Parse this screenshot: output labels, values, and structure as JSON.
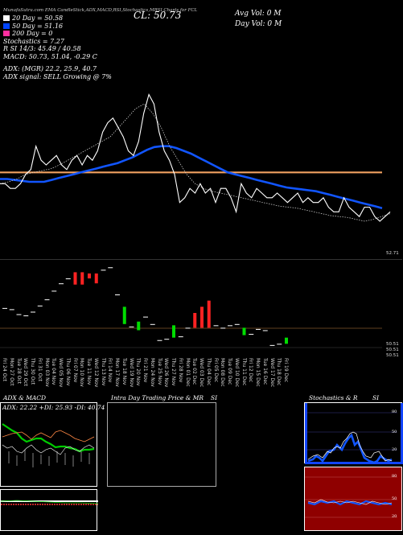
{
  "header": {
    "top_line": "MunafaSutra.com EMA CandleStick,ADX,MACD,RSI,Stochastics,MRSI Charts for FCL",
    "close_label": "CL: 50.73",
    "avg_vol": "Avg Vol: 0   M",
    "day_vol": "Day Vol: 0   M",
    "legend": [
      {
        "label": "20  Day = 50.58",
        "color": "#ffffff"
      },
      {
        "label": "50  Day = 51.16",
        "color": "#0044ff"
      },
      {
        "label": "200  Day = 0",
        "color": "#ff2fa0"
      }
    ],
    "stoch": "Stochastics = 7.27",
    "rsi": "R          SI 14/3: 45.49 / 40.58",
    "macd": "MACD: 50.73, 51.04, -0.29 C",
    "adx": "ADX:                    (MGR) 22.2, 25.9, 40.7",
    "adx_signal": "ADX  signal: SELL Growing @ 7%"
  },
  "price_chart": {
    "price_label": "52.71",
    "series_white": [
      51.6,
      51.6,
      51.55,
      51.55,
      51.6,
      51.7,
      51.75,
      52.0,
      51.85,
      51.8,
      51.85,
      51.9,
      51.8,
      51.75,
      51.85,
      51.9,
      51.8,
      51.9,
      51.85,
      51.95,
      52.15,
      52.25,
      52.3,
      52.2,
      52.1,
      51.95,
      51.9,
      52.05,
      52.35,
      52.55,
      52.45,
      52.15,
      51.95,
      51.85,
      51.7,
      51.4,
      51.45,
      51.55,
      51.5,
      51.6,
      51.5,
      51.55,
      51.4,
      51.55,
      51.55,
      51.45,
      51.3,
      51.6,
      51.5,
      51.45,
      51.55,
      51.5,
      51.45,
      51.45,
      51.5,
      51.45,
      51.4,
      51.45,
      51.5,
      51.4,
      51.45,
      51.4,
      51.4,
      51.45,
      51.35,
      51.3,
      51.3,
      51.45,
      51.35,
      51.3,
      51.25,
      51.35,
      51.35,
      51.25,
      51.2,
      51.25,
      51.3
    ],
    "series_blue": [
      51.65,
      51.65,
      51.64,
      51.63,
      51.62,
      51.62,
      51.62,
      51.64,
      51.66,
      51.68,
      51.7,
      51.72,
      51.74,
      51.76,
      51.78,
      51.8,
      51.82,
      51.85,
      51.88,
      51.92,
      51.96,
      51.99,
      52.0,
      52.0,
      51.98,
      51.95,
      51.92,
      51.88,
      51.84,
      51.8,
      51.76,
      51.72,
      51.7,
      51.68,
      51.66,
      51.64,
      51.62,
      51.6,
      51.58,
      51.56,
      51.55,
      51.54,
      51.53,
      51.52,
      51.5,
      51.48,
      51.46,
      51.44,
      51.42,
      51.4,
      51.38,
      51.36,
      51.34
    ],
    "series_dotted": [
      51.6,
      51.62,
      51.65,
      51.7,
      51.72,
      51.74,
      51.76,
      51.8,
      51.85,
      51.9,
      51.95,
      52.0,
      52.05,
      52.1,
      52.2,
      52.3,
      52.4,
      52.45,
      52.35,
      52.2,
      52.0,
      51.85,
      51.7,
      51.6,
      51.55,
      51.52,
      51.5,
      51.48,
      51.46,
      51.44,
      51.42,
      51.4,
      51.38,
      51.36,
      51.35,
      51.34,
      51.32,
      51.3,
      51.28,
      51.26,
      51.25,
      51.24,
      51.22,
      51.2,
      51.22,
      51.25,
      51.28
    ],
    "orange_level": 51.72
  },
  "candle_chart": {
    "dates": [
      "Fri 24 Oct",
      "Mon 27 Oct",
      "Tue 28 Oct",
      "Wed 29 Oct",
      "Thu 30 Oct",
      "Fri 31 Oct",
      "Mon 03 Nov",
      "Tue 04 Nov",
      "Wed 05 Nov",
      "Thu 06 Nov",
      "Fri 07 Nov",
      "Mon 10 Nov",
      "Tue 11 Nov",
      "Wed 12 Nov",
      "Thu 13 Nov",
      "Fri 14 Nov",
      "Mon 17 Nov",
      "Tue 18 Nov",
      "Wed 19 Nov",
      "Thu 20 Nov",
      "Fri 21 Nov",
      "Mon 24 Nov",
      "Tue 25 Nov",
      "Wed 26 Nov",
      "Thu 27 Nov",
      "Fri 28 Nov",
      "Mon 01 Dec",
      "Tue 02 Dec",
      "Wed 03 Dec",
      "Thu 04 Dec",
      "Fri 05 Dec",
      "Mon 08 Dec",
      "Tue 09 Dec",
      "Wed 10 Dec",
      "Thu 11 Dec",
      "Fri 12 Dec",
      "Mon 15 Dec",
      "Tue 16 Dec",
      "Wed 17 Dec",
      "Thu 18 Dec",
      "Fri 19 Dec"
    ],
    "candles": [
      {
        "o": 51.58,
        "c": 51.58,
        "color": "#ffffff"
      },
      {
        "o": 51.56,
        "c": 51.56,
        "color": "#ffffff"
      },
      {
        "o": 51.48,
        "c": 51.48,
        "color": "#ffffff"
      },
      {
        "o": 51.46,
        "c": 51.46,
        "color": "#ffffff"
      },
      {
        "o": 51.52,
        "c": 51.52,
        "color": "#ffffff"
      },
      {
        "o": 51.62,
        "c": 51.62,
        "color": "#ffffff"
      },
      {
        "o": 51.72,
        "c": 51.72,
        "color": "#ffffff"
      },
      {
        "o": 51.86,
        "c": 51.86,
        "color": "#ffffff"
      },
      {
        "o": 51.98,
        "c": 51.98,
        "color": "#ffffff"
      },
      {
        "o": 52.06,
        "c": 52.06,
        "color": "#ffffff"
      },
      {
        "o": 51.96,
        "c": 52.16,
        "color": "#ff2222"
      },
      {
        "o": 51.96,
        "c": 52.16,
        "color": "#ff2222"
      },
      {
        "o": 52.06,
        "c": 52.14,
        "color": "#ff2222"
      },
      {
        "o": 51.98,
        "c": 52.14,
        "color": "#ff2222"
      },
      {
        "o": 52.2,
        "c": 52.2,
        "color": "#ffffff"
      },
      {
        "o": 52.24,
        "c": 52.24,
        "color": "#ffffff"
      },
      {
        "o": 51.8,
        "c": 51.8,
        "color": "#ffffff"
      },
      {
        "o": 51.6,
        "c": 51.32,
        "color": "#00dd00"
      },
      {
        "o": 51.28,
        "c": 51.28,
        "color": "#ffffff"
      },
      {
        "o": 51.36,
        "c": 51.22,
        "color": "#00dd00"
      },
      {
        "o": 51.44,
        "c": 51.44,
        "color": "#ffffff"
      },
      {
        "o": 51.32,
        "c": 51.32,
        "color": "#ffffff"
      },
      {
        "o": 51.06,
        "c": 51.06,
        "color": "#ffffff"
      },
      {
        "o": 51.08,
        "c": 51.08,
        "color": "#ffffff"
      },
      {
        "o": 51.3,
        "c": 51.1,
        "color": "#00dd00"
      },
      {
        "o": 51.12,
        "c": 51.12,
        "color": "#ffffff"
      },
      {
        "o": 51.26,
        "c": 51.26,
        "color": "#ffffff"
      },
      {
        "o": 51.26,
        "c": 51.5,
        "color": "#ff2222"
      },
      {
        "o": 51.26,
        "c": 51.6,
        "color": "#ff2222"
      },
      {
        "o": 51.26,
        "c": 51.7,
        "color": "#ff2222"
      },
      {
        "o": 51.3,
        "c": 51.3,
        "color": "#ffffff"
      },
      {
        "o": 51.26,
        "c": 51.26,
        "color": "#ffffff"
      },
      {
        "o": 51.3,
        "c": 51.3,
        "color": "#ffffff"
      },
      {
        "o": 51.32,
        "c": 51.32,
        "color": "#ffffff"
      },
      {
        "o": 51.26,
        "c": 51.14,
        "color": "#00dd00"
      },
      {
        "o": 51.16,
        "c": 51.16,
        "color": "#ffffff"
      },
      {
        "o": 51.24,
        "c": 51.24,
        "color": "#ffffff"
      },
      {
        "o": 51.22,
        "c": 51.22,
        "color": "#ffffff"
      },
      {
        "o": 50.98,
        "c": 50.98,
        "color": "#ffffff"
      },
      {
        "o": 51.0,
        "c": 51.0,
        "color": "#ffffff"
      },
      {
        "o": 51.1,
        "c": 51.0,
        "color": "#00dd00"
      }
    ],
    "price_labels": [
      "50.51",
      "50.51",
      "50.51"
    ]
  },
  "panels": {
    "adx_title": "ADX  & MACD",
    "adx_values": "ADX: 22.22  +DI: 25.93 -DI: 40.74",
    "intraday_title": "Intra  Day Trading Price  & MR",
    "si_label": "SI",
    "stoch_title": "Stochastics & R",
    "stoch_si_label": "SI",
    "stoch_axis": [
      "80",
      "50",
      "20"
    ],
    "mrsi_axis": [
      "80",
      "50",
      "20"
    ]
  },
  "colors": {
    "background": "#000000",
    "blue": "#1155ff",
    "orange": "#f0a060",
    "red_panel": "#990000",
    "green": "#00cc00"
  }
}
